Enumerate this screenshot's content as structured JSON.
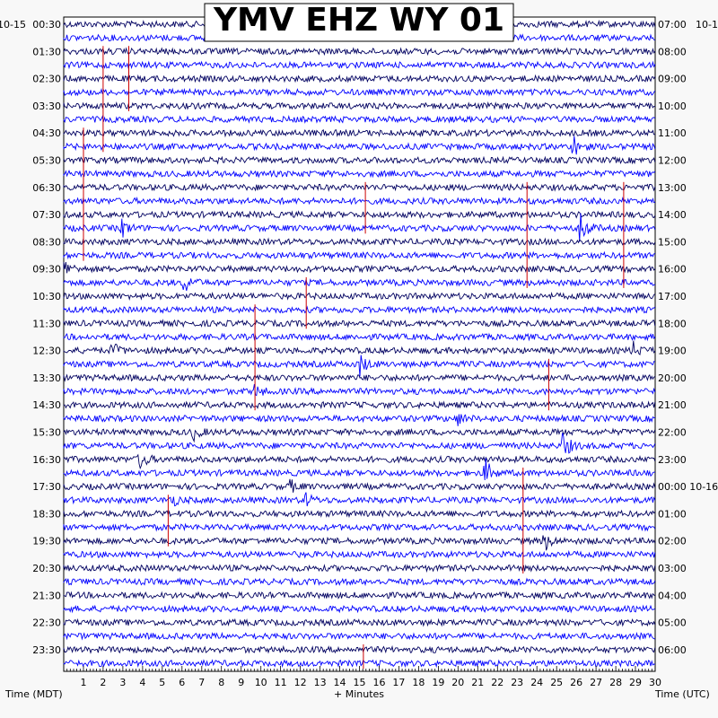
{
  "chart_data": {
    "type": "seismogram",
    "title": "YMV EHZ WY 01",
    "date_left": "10-15",
    "date_right": "10-1",
    "date_right_next": "10-16",
    "xlabel": "+ Minutes",
    "ylabel_left": "Time (MDT)",
    "ylabel_right": "Time (UTC)",
    "x_ticks": [
      "1",
      "2",
      "3",
      "4",
      "5",
      "6",
      "7",
      "8",
      "9",
      "10",
      "11",
      "12",
      "13",
      "14",
      "15",
      "16",
      "17",
      "18",
      "19",
      "20",
      "21",
      "22",
      "23",
      "24",
      "25",
      "26",
      "27",
      "28",
      "29",
      "30"
    ],
    "xlim": [
      0,
      30
    ],
    "left_times": [
      "00:30",
      "01:30",
      "02:30",
      "03:30",
      "04:30",
      "05:30",
      "06:30",
      "07:30",
      "08:30",
      "09:30",
      "10:30",
      "11:30",
      "12:30",
      "13:30",
      "14:30",
      "15:30",
      "16:30",
      "17:30",
      "18:30",
      "19:30",
      "20:30",
      "21:30",
      "22:30",
      "23:30"
    ],
    "right_times": [
      "07:00",
      "08:00",
      "09:00",
      "10:00",
      "11:00",
      "12:00",
      "13:00",
      "14:00",
      "15:00",
      "16:00",
      "17:00",
      "18:00",
      "19:00",
      "20:00",
      "21:00",
      "22:00",
      "23:00",
      "00:00",
      "01:00",
      "02:00",
      "03:00",
      "04:00",
      "05:00",
      "06:00"
    ],
    "trace_count": 48,
    "trace_colors": [
      "#000060",
      "#0000ff"
    ],
    "marker_color": "#cc0000",
    "events": [
      {
        "trace": 9,
        "minute": 25.9,
        "amp": 10
      },
      {
        "trace": 15,
        "minute": 26.3,
        "amp": 14
      },
      {
        "trace": 15,
        "minute": 3.0,
        "amp": 8
      },
      {
        "trace": 18,
        "minute": 0.1,
        "amp": 8
      },
      {
        "trace": 19,
        "minute": 6.2,
        "amp": 8
      },
      {
        "trace": 24,
        "minute": 2.5,
        "amp": 7
      },
      {
        "trace": 24,
        "minute": 28.9,
        "amp": 8
      },
      {
        "trace": 25,
        "minute": 15.0,
        "amp": 12
      },
      {
        "trace": 27,
        "minute": 9.7,
        "amp": 6
      },
      {
        "trace": 29,
        "minute": 20.0,
        "amp": 6
      },
      {
        "trace": 30,
        "minute": 6.6,
        "amp": 7
      },
      {
        "trace": 31,
        "minute": 25.4,
        "amp": 12
      },
      {
        "trace": 32,
        "minute": 3.9,
        "amp": 9
      },
      {
        "trace": 33,
        "minute": 21.4,
        "amp": 14
      },
      {
        "trace": 34,
        "minute": 11.5,
        "amp": 6
      },
      {
        "trace": 35,
        "minute": 12.3,
        "amp": 6
      },
      {
        "trace": 35,
        "minute": 5.5,
        "amp": 6
      },
      {
        "trace": 38,
        "minute": 24.4,
        "amp": 10
      }
    ],
    "markers": [
      {
        "trace_start": 2,
        "trace_end": 9,
        "minute": 2.0
      },
      {
        "trace_start": 2,
        "trace_end": 6,
        "minute": 3.3
      },
      {
        "trace_start": 8,
        "trace_end": 17,
        "minute": 1.0
      },
      {
        "trace_start": 12,
        "trace_end": 15,
        "minute": 15.3
      },
      {
        "trace_start": 12,
        "trace_end": 19,
        "minute": 23.5
      },
      {
        "trace_start": 12,
        "trace_end": 19,
        "minute": 28.4
      },
      {
        "trace_start": 19,
        "trace_end": 22,
        "minute": 12.3
      },
      {
        "trace_start": 21,
        "trace_end": 28,
        "minute": 9.7
      },
      {
        "trace_start": 25,
        "trace_end": 28,
        "minute": 24.6
      },
      {
        "trace_start": 33,
        "trace_end": 40,
        "minute": 23.3
      },
      {
        "trace_start": 35,
        "trace_end": 38,
        "minute": 5.3
      },
      {
        "trace_start": 46,
        "trace_end": 47,
        "minute": 15.2
      }
    ]
  }
}
